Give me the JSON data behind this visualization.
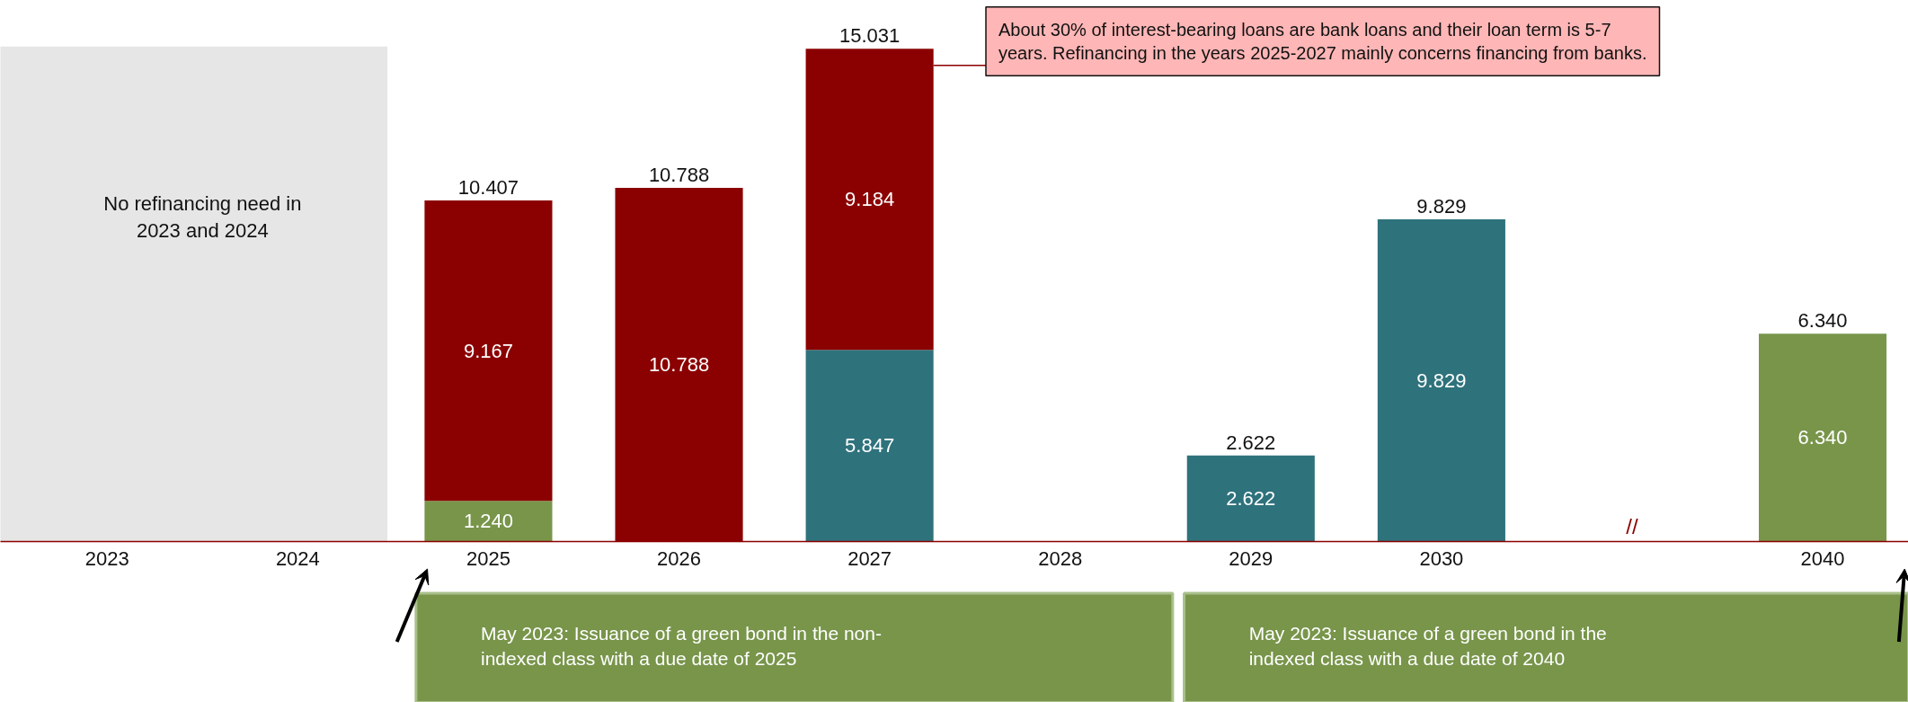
{
  "chart_data": {
    "type": "bar",
    "stacked": true,
    "categories": [
      "2023",
      "2024",
      "2025",
      "2026",
      "2027",
      "2028",
      "2029",
      "2030",
      null,
      "2040"
    ],
    "series": [
      {
        "color": "#78954a",
        "values": [
          null,
          null,
          1.24,
          null,
          null,
          null,
          null,
          null,
          null,
          6.34
        ],
        "value_labels": [
          null,
          null,
          "1.240",
          null,
          null,
          null,
          null,
          null,
          null,
          "6.340"
        ]
      },
      {
        "color": "#2e727c",
        "values": [
          null,
          null,
          null,
          null,
          5.847,
          null,
          2.622,
          9.829,
          null,
          null
        ],
        "value_labels": [
          null,
          null,
          null,
          null,
          "5.847",
          null,
          "2.622",
          "9.829",
          null,
          null
        ]
      },
      {
        "color": "#8b0000",
        "values": [
          null,
          null,
          9.167,
          10.788,
          9.184,
          null,
          null,
          null,
          null,
          null
        ],
        "value_labels": [
          null,
          null,
          "9.167",
          "10.788",
          "9.184",
          null,
          null,
          null,
          null,
          null
        ]
      }
    ],
    "totals": [
      null,
      null,
      "10.407",
      "10.788",
      "15.031",
      null,
      "2.622",
      "9.829",
      null,
      "6.340"
    ],
    "tick_labels": "x",
    "grid": false,
    "bands": [
      {
        "axis": "x",
        "from": "2023",
        "to": "2024",
        "label": "No refinancing need in 2023 and 2024",
        "color": "#e6e6e6"
      }
    ],
    "annotations": [
      "About 30% of interest-bearing loans are bank loans and their loan term is 5-7 years. Refinancing in the years 2025-2027 mainly concerns financing from banks.",
      "May 2023: Issuance of a green bond in the non-indexed class with a due date of 2025",
      "May 2023: Issuance of a green bond in the indexed class with a due date of 2040",
      "//"
    ]
  }
}
